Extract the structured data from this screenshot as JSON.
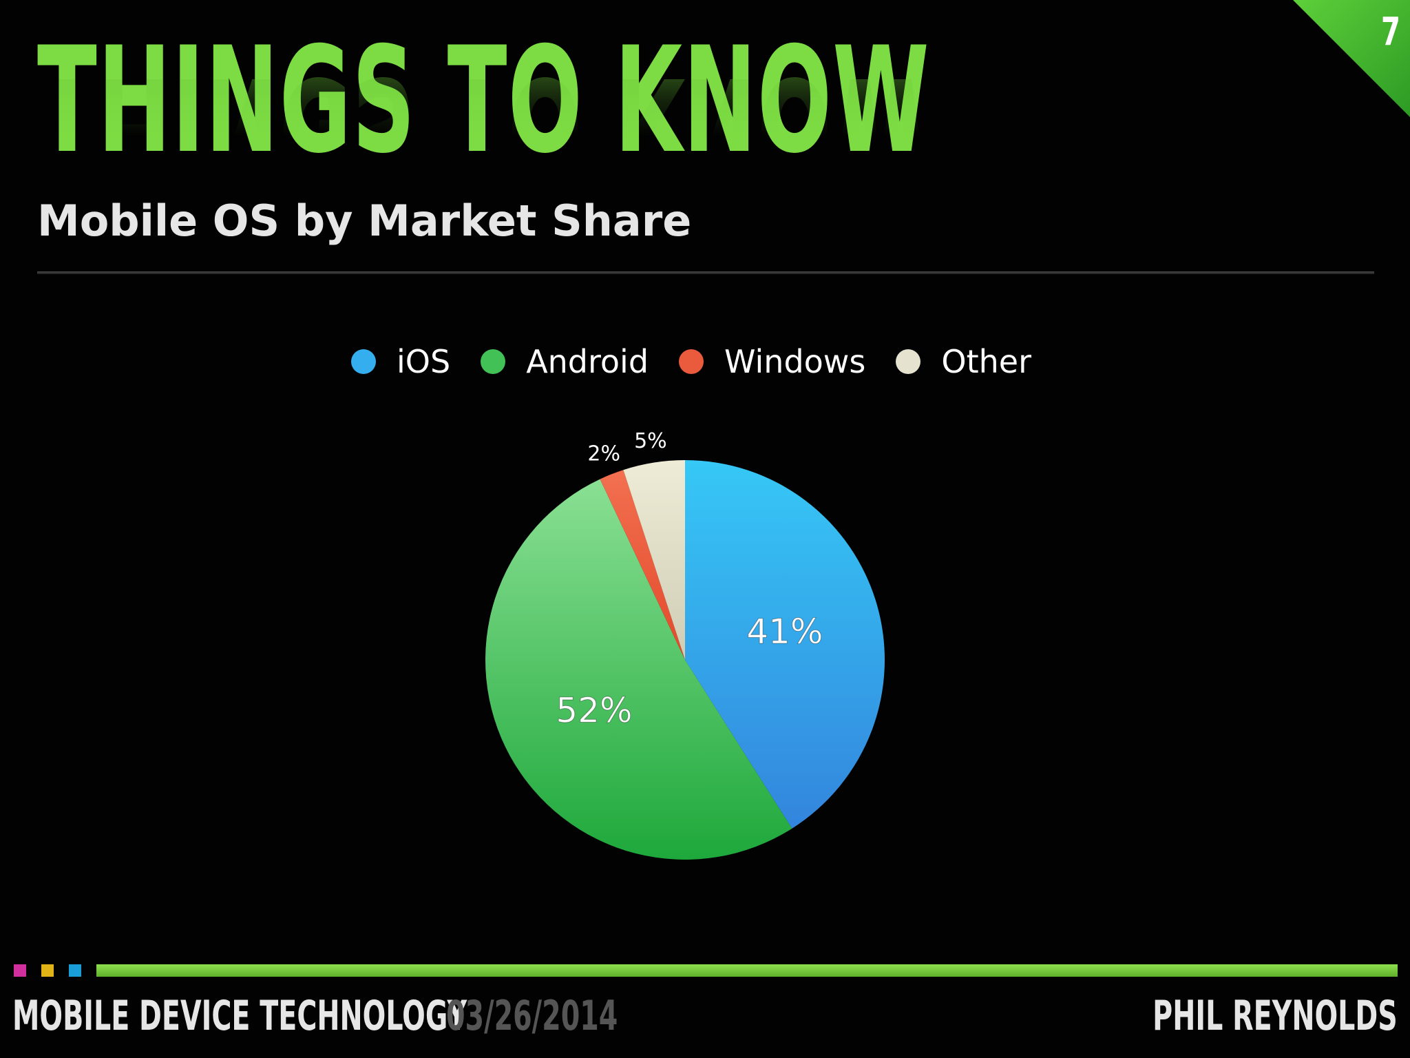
{
  "slide": {
    "page_number": "7",
    "title": "THINGS TO KNOW",
    "subtitle": "Mobile OS by Market Share"
  },
  "legend": [
    {
      "label": "iOS",
      "color": "#35aef0"
    },
    {
      "label": "Android",
      "color": "#42c156"
    },
    {
      "label": "Windows",
      "color": "#ea5a3c"
    },
    {
      "label": "Other",
      "color": "#e5e3cf"
    }
  ],
  "chart_data": {
    "type": "pie",
    "title": "Mobile OS by Market Share",
    "slices": [
      {
        "name": "iOS",
        "value": 41,
        "label": "41%",
        "color": "#35aef0"
      },
      {
        "name": "Android",
        "value": 52,
        "label": "52%",
        "color": "#42c156"
      },
      {
        "name": "Windows",
        "value": 2,
        "label": "2%",
        "color": "#ea5a3c"
      },
      {
        "name": "Other",
        "value": 5,
        "label": "5%",
        "color": "#e5e3cf"
      }
    ],
    "start_angle": "12 o'clock",
    "direction": "clockwise",
    "legend_position": "top"
  },
  "footer": {
    "course": "MOBILE DEVICE TECHNOLOGY",
    "date": "03/26/2014",
    "author": "PHIL REYNOLDS",
    "square_colors": [
      "#d1309c",
      "#e2b316",
      "#1a9ed8"
    ],
    "bar_color": "#6fc838"
  }
}
